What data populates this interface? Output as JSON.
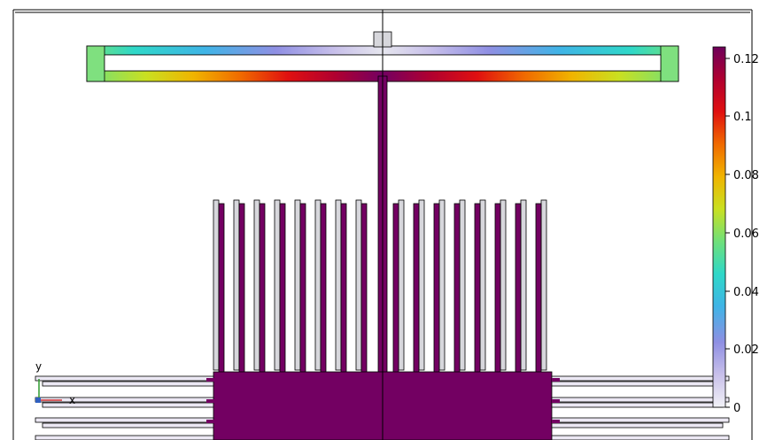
{
  "window": {
    "description_visible_text_only": true
  },
  "colorbar": {
    "ticks": [
      "0.12",
      "0.1",
      "0.08",
      "0.06",
      "0.04",
      "0.02",
      "0"
    ],
    "colormap": [
      "#f2f2f7",
      "#c8c0ea",
      "#8f8fe3",
      "#3fb4e6",
      "#2fd8c8",
      "#6fe07a",
      "#c9e021",
      "#f0b400",
      "#f06a00",
      "#e01010",
      "#b00030",
      "#6e005a"
    ]
  },
  "axes_triad": {
    "y_label": "y",
    "x_label": "x"
  },
  "colors": {
    "max_purple": "#730062",
    "edge_green": "#7fe07f",
    "neutral_gray": "#d7d7dc",
    "outline": "#000000"
  }
}
